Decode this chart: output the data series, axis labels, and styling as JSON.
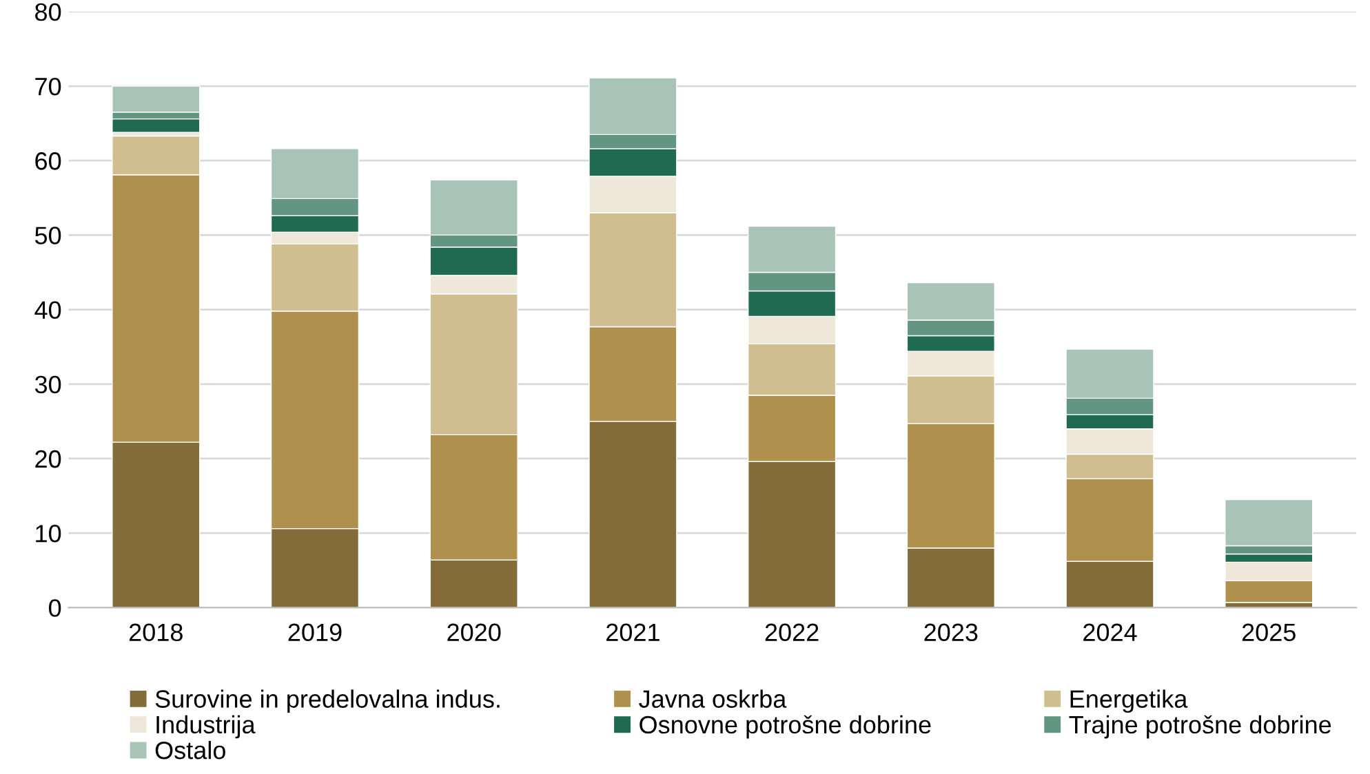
{
  "chart_data": {
    "type": "bar",
    "stacked": true,
    "categories": [
      "2018",
      "2019",
      "2020",
      "2021",
      "2022",
      "2023",
      "2024",
      "2025"
    ],
    "series": [
      {
        "name": "Surovine in predelovalna indus.",
        "color": "#836c3a",
        "values": [
          22.2,
          10.6,
          6.4,
          25.0,
          19.6,
          8.0,
          6.2,
          0.7
        ]
      },
      {
        "name": "Javna oskrba",
        "color": "#af914d",
        "values": [
          35.9,
          29.2,
          16.8,
          12.7,
          8.9,
          16.7,
          11.1,
          2.9
        ]
      },
      {
        "name": "Energetika",
        "color": "#d0be91",
        "values": [
          5.2,
          9.0,
          18.9,
          15.3,
          6.9,
          6.4,
          3.3,
          null
        ]
      },
      {
        "name": "Industrija",
        "color": "#efe8da",
        "values": [
          0.5,
          1.6,
          2.5,
          4.9,
          3.7,
          3.3,
          3.4,
          2.5
        ]
      },
      {
        "name": "Osnovne potrošne dobrine",
        "color": "#1f6a50",
        "values": [
          1.8,
          2.2,
          3.8,
          3.7,
          3.4,
          2.1,
          1.9,
          1.1
        ]
      },
      {
        "name": "Trajne potrošne dobrine",
        "color": "#629683",
        "values": [
          0.9,
          2.3,
          1.6,
          1.9,
          2.5,
          2.1,
          2.2,
          1.1
        ]
      },
      {
        "name": "Ostalo",
        "color": "#a8c4b9",
        "values": [
          3.5,
          6.7,
          7.4,
          7.6,
          6.2,
          5.0,
          6.6,
          6.2
        ]
      }
    ],
    "ylim": [
      0,
      80
    ],
    "yticks": [
      0,
      10,
      20,
      30,
      40,
      50,
      60,
      70,
      80
    ],
    "grid": "y",
    "legend": "bottom"
  }
}
